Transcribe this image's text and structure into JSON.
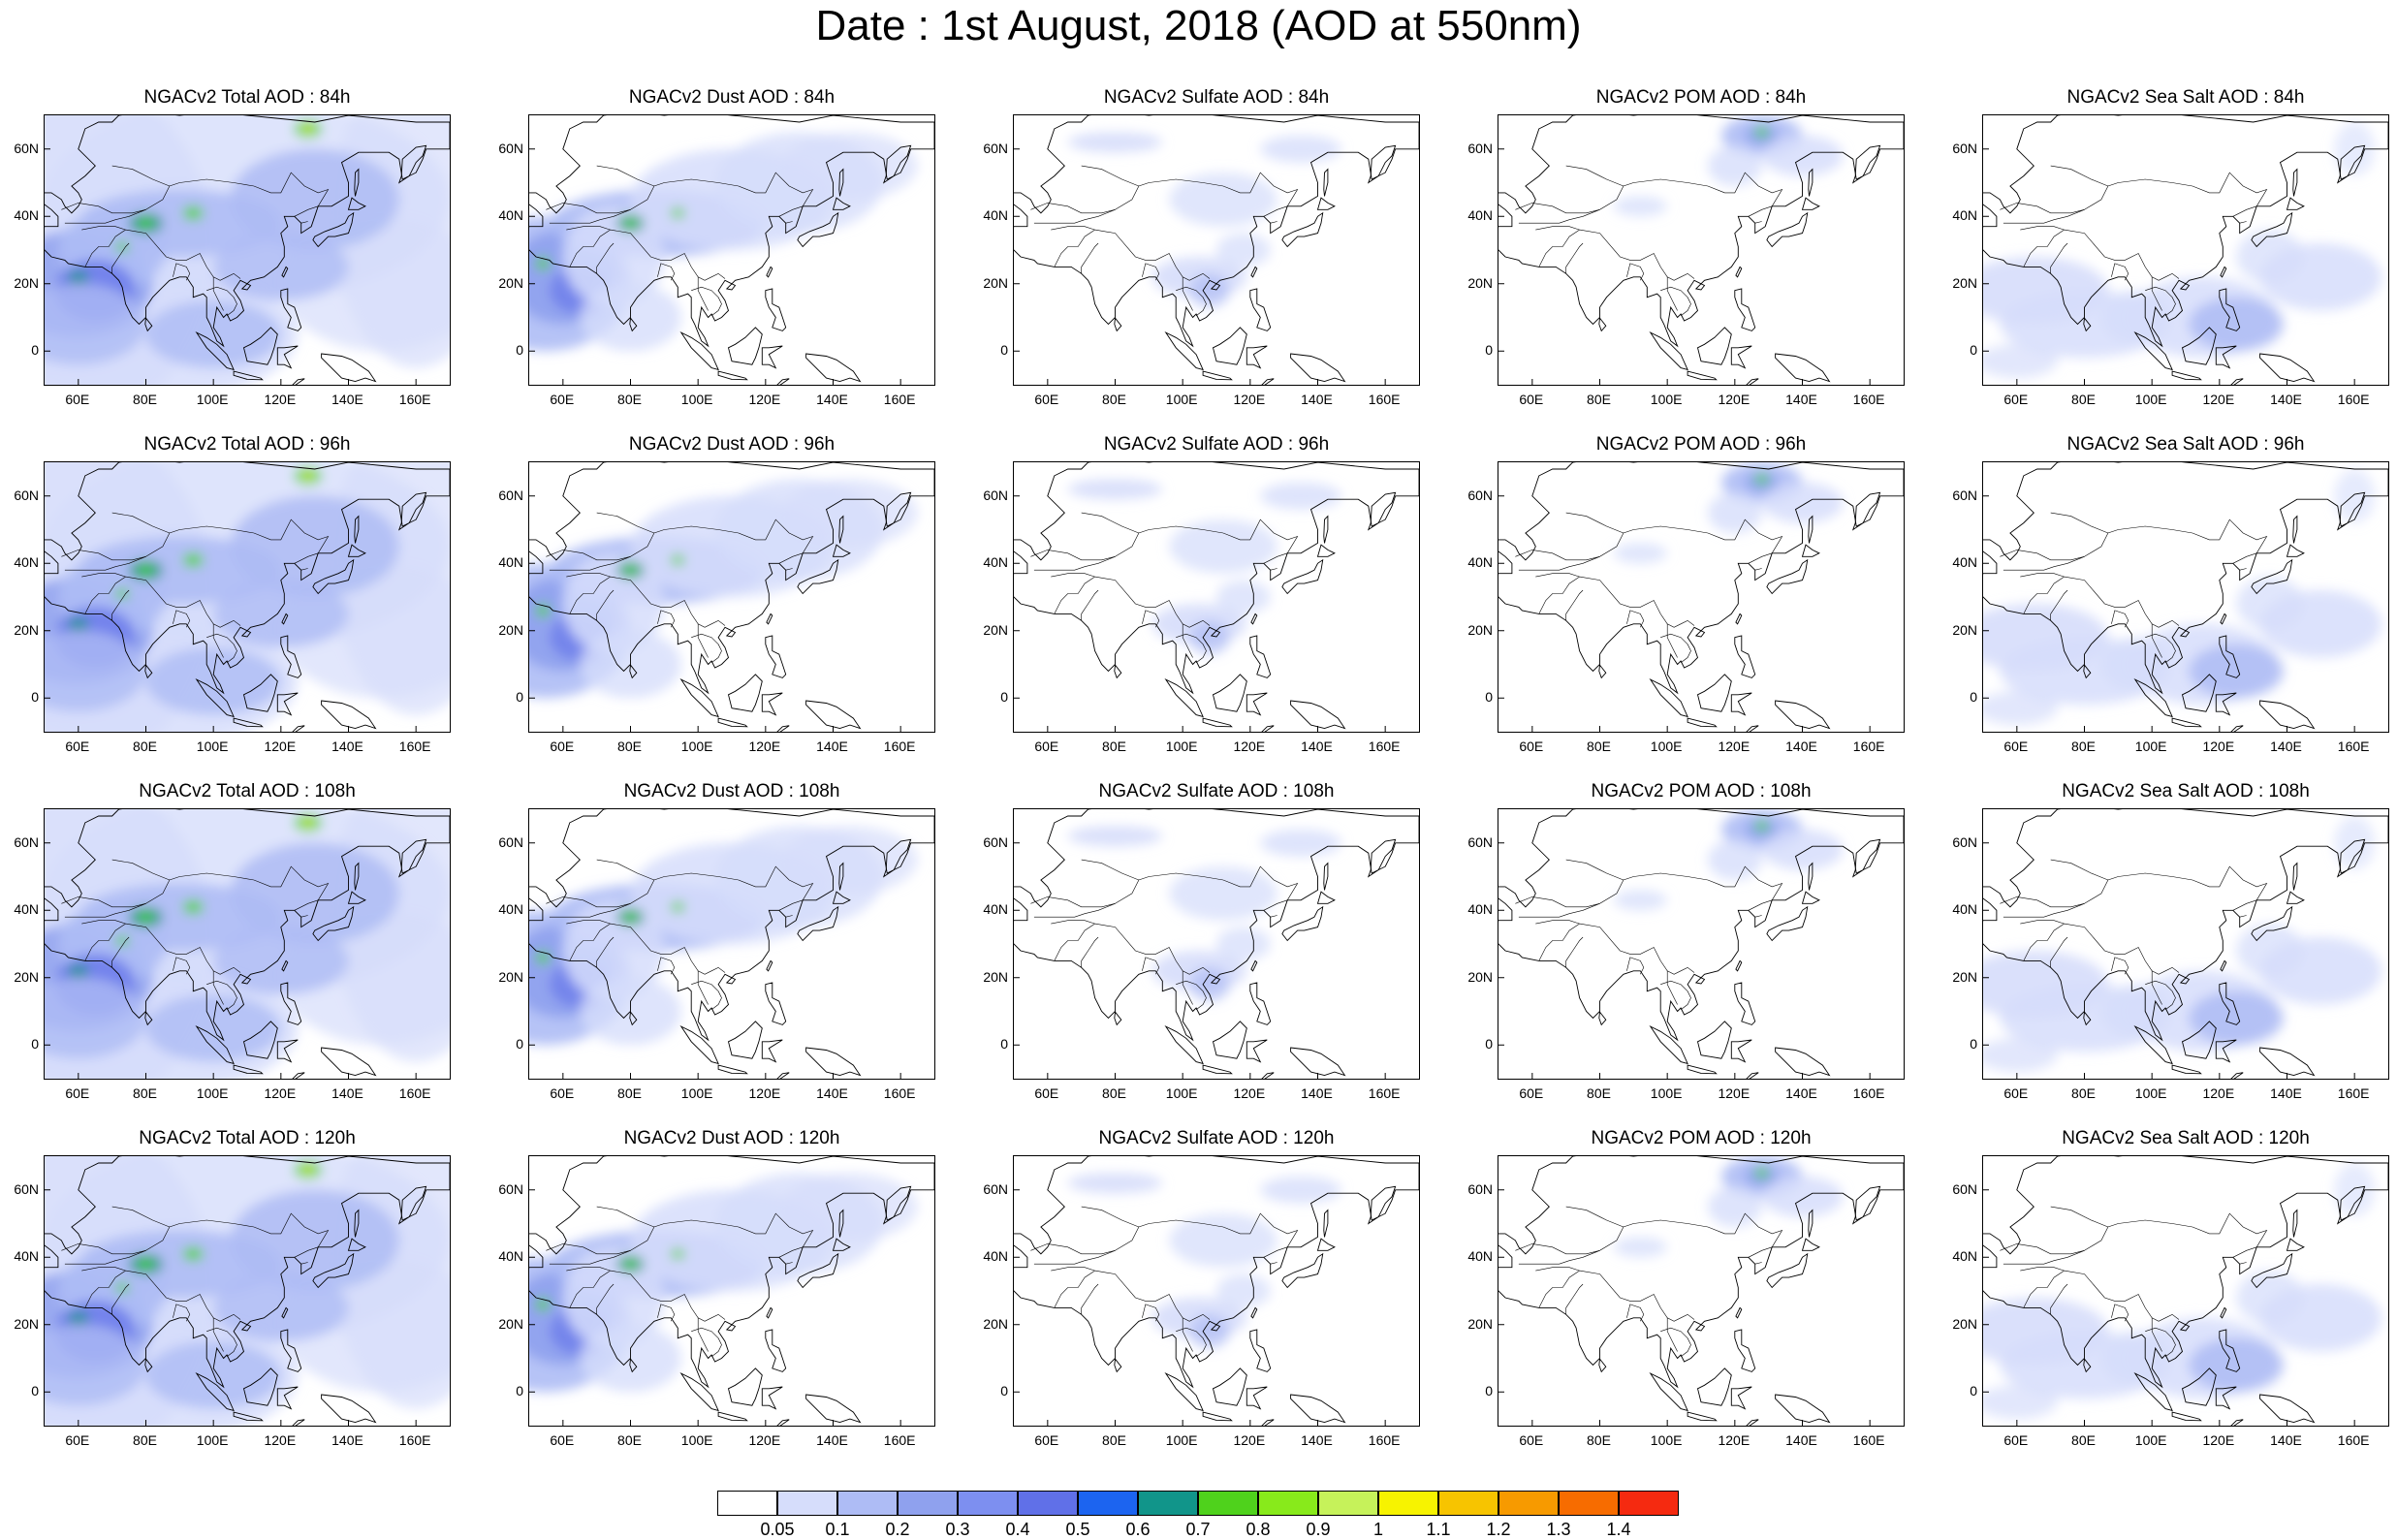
{
  "title": "Date : 1st August, 2018 (AOD at 550nm)",
  "colors": {
    "pale_blue": "#d6ddfb",
    "light_blue": "#aebcf5",
    "mid_blue": "#8fa1ee",
    "blue": "#7d8ff0",
    "deep_blue": "#6070e8",
    "teal": "#11958a",
    "green": "#4fd21c",
    "lime": "#c6f25a",
    "yellow": "#f7f300"
  },
  "lat_labels": [
    "60N",
    "40N",
    "20N",
    "0"
  ],
  "lon_labels": [
    "60E",
    "80E",
    "100E",
    "120E",
    "140E",
    "160E"
  ],
  "panels": [
    {
      "title": "NGACv2 Total AOD : 84h",
      "type": "total"
    },
    {
      "title": "NGACv2 Dust AOD : 84h",
      "type": "dust"
    },
    {
      "title": "NGACv2 Sulfate AOD : 84h",
      "type": "sulfate"
    },
    {
      "title": "NGACv2 POM AOD : 84h",
      "type": "pom"
    },
    {
      "title": "NGACv2 Sea Salt AOD : 84h",
      "type": "seasalt"
    },
    {
      "title": "NGACv2 Total AOD : 96h",
      "type": "total"
    },
    {
      "title": "NGACv2 Dust AOD : 96h",
      "type": "dust"
    },
    {
      "title": "NGACv2 Sulfate AOD : 96h",
      "type": "sulfate"
    },
    {
      "title": "NGACv2 POM AOD : 96h",
      "type": "pom"
    },
    {
      "title": "NGACv2 Sea Salt AOD : 96h",
      "type": "seasalt"
    },
    {
      "title": "NGACv2 Total AOD : 108h",
      "type": "total"
    },
    {
      "title": "NGACv2 Dust AOD : 108h",
      "type": "dust"
    },
    {
      "title": "NGACv2 Sulfate AOD : 108h",
      "type": "sulfate"
    },
    {
      "title": "NGACv2 POM AOD : 108h",
      "type": "pom"
    },
    {
      "title": "NGACv2 Sea Salt AOD : 108h",
      "type": "seasalt"
    },
    {
      "title": "NGACv2 Total AOD : 120h",
      "type": "total"
    },
    {
      "title": "NGACv2 Dust AOD : 120h",
      "type": "dust"
    },
    {
      "title": "NGACv2 Sulfate AOD : 120h",
      "type": "sulfate"
    },
    {
      "title": "NGACv2 POM AOD : 120h",
      "type": "pom"
    },
    {
      "title": "NGACv2 Sea Salt  AOD : 120h",
      "type": "seasalt"
    }
  ],
  "colorbar": {
    "labels": [
      "0.05",
      "0.1",
      "0.2",
      "0.3",
      "0.4",
      "0.5",
      "0.6",
      "0.7",
      "0.8",
      "0.9",
      "1",
      "1.1",
      "1.2",
      "1.3",
      "1.4"
    ],
    "colors": [
      "#ffffff",
      "#d6ddfb",
      "#aebcf5",
      "#8fa1ee",
      "#7d8ff0",
      "#6070e8",
      "#1c64f0",
      "#11958a",
      "#4fd21c",
      "#88ea1b",
      "#c6f25a",
      "#f7f300",
      "#f7c400",
      "#f79a00",
      "#f76c00",
      "#f52a10"
    ]
  }
}
